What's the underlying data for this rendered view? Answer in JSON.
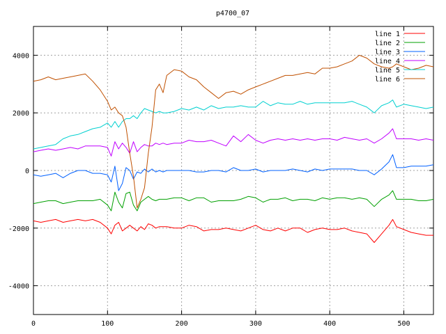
{
  "chart_data": {
    "type": "line",
    "title": "p4700_07",
    "xlabel": "",
    "ylabel": "",
    "xlim": [
      0,
      540
    ],
    "ylim": [
      -5000,
      5000
    ],
    "x_ticks": [
      0,
      100,
      200,
      300,
      400,
      500
    ],
    "y_ticks": [
      -4000,
      -2000,
      0,
      2000,
      4000
    ],
    "x_tick_labels": [
      "0",
      "100",
      "200",
      "300",
      "400",
      "500"
    ],
    "y_tick_labels": [
      "-4000",
      "-2000",
      "0",
      "2000",
      "4000"
    ],
    "grid": true,
    "legend_position": "top-right",
    "x": [
      0,
      10,
      20,
      30,
      40,
      50,
      60,
      70,
      80,
      90,
      100,
      105,
      110,
      115,
      120,
      125,
      130,
      135,
      140,
      145,
      150,
      155,
      160,
      165,
      170,
      175,
      180,
      190,
      200,
      210,
      220,
      230,
      240,
      250,
      260,
      270,
      280,
      290,
      300,
      310,
      320,
      330,
      340,
      350,
      360,
      370,
      380,
      390,
      400,
      410,
      420,
      430,
      440,
      450,
      460,
      470,
      480,
      485,
      490,
      500,
      510,
      520,
      530,
      540
    ],
    "series": [
      {
        "name": "line 1",
        "color": "#ff0000",
        "values": [
          -1750,
          -1800,
          -1750,
          -1700,
          -1800,
          -1750,
          -1700,
          -1750,
          -1700,
          -1800,
          -2000,
          -2200,
          -1900,
          -1800,
          -2100,
          -2000,
          -1900,
          -2000,
          -2100,
          -1950,
          -2050,
          -1850,
          -1900,
          -2000,
          -1950,
          -1950,
          -1950,
          -2000,
          -2000,
          -1900,
          -1950,
          -2100,
          -2050,
          -2050,
          -2000,
          -2050,
          -2100,
          -2000,
          -1900,
          -2050,
          -2100,
          -2000,
          -2100,
          -2000,
          -2000,
          -2150,
          -2050,
          -2000,
          -2050,
          -2050,
          -2000,
          -2100,
          -2150,
          -2200,
          -2500,
          -2200,
          -1900,
          -1700,
          -1950,
          -2050,
          -2150,
          -2200,
          -2250,
          -2250
        ]
      },
      {
        "name": "line 2",
        "color": "#00a000",
        "values": [
          -1150,
          -1100,
          -1050,
          -1050,
          -1150,
          -1100,
          -1050,
          -1050,
          -1050,
          -1000,
          -1200,
          -1400,
          -750,
          -1100,
          -1300,
          -800,
          -750,
          -1200,
          -1400,
          -1100,
          -1000,
          -900,
          -1000,
          -1050,
          -1000,
          -1000,
          -1000,
          -950,
          -950,
          -1050,
          -950,
          -950,
          -1100,
          -1050,
          -1050,
          -1050,
          -1000,
          -900,
          -950,
          -1100,
          -1000,
          -1000,
          -950,
          -1050,
          -1000,
          -1000,
          -1050,
          -950,
          -1000,
          -950,
          -950,
          -1000,
          -950,
          -1000,
          -1250,
          -1000,
          -850,
          -700,
          -1000,
          -1000,
          -1000,
          -1050,
          -1050,
          -1000
        ]
      },
      {
        "name": "line 3",
        "color": "#0060ff",
        "values": [
          -150,
          -200,
          -150,
          -100,
          -250,
          -100,
          0,
          0,
          -100,
          -100,
          -150,
          -400,
          150,
          -700,
          -450,
          100,
          0,
          -300,
          -50,
          -100,
          50,
          -50,
          50,
          -50,
          0,
          -50,
          0,
          0,
          0,
          0,
          -50,
          -50,
          0,
          0,
          -50,
          100,
          0,
          0,
          50,
          -50,
          0,
          0,
          0,
          50,
          0,
          -50,
          50,
          0,
          50,
          50,
          50,
          50,
          0,
          0,
          -150,
          50,
          300,
          550,
          100,
          100,
          150,
          150,
          150,
          200
        ]
      },
      {
        "name": "line 4",
        "color": "#c000ff",
        "values": [
          650,
          700,
          750,
          700,
          750,
          800,
          750,
          850,
          850,
          850,
          800,
          500,
          1000,
          750,
          950,
          800,
          600,
          1000,
          650,
          800,
          900,
          850,
          850,
          950,
          900,
          950,
          900,
          950,
          950,
          1050,
          1000,
          1000,
          1050,
          950,
          850,
          1200,
          1000,
          1250,
          1050,
          950,
          1050,
          1100,
          1050,
          1100,
          1050,
          1100,
          1050,
          1100,
          1100,
          1050,
          1150,
          1100,
          1050,
          1100,
          950,
          1100,
          1300,
          1450,
          1100,
          1100,
          1100,
          1050,
          1100,
          1050
        ]
      },
      {
        "name": "line 5",
        "color": "#00d0d0",
        "values": [
          750,
          800,
          850,
          900,
          1100,
          1200,
          1250,
          1350,
          1450,
          1500,
          1650,
          1500,
          1700,
          1500,
          1700,
          1800,
          1800,
          1900,
          1800,
          2000,
          2150,
          2100,
          2050,
          2000,
          2050,
          2000,
          2000,
          2050,
          2150,
          2100,
          2200,
          2100,
          2250,
          2150,
          2200,
          2200,
          2250,
          2200,
          2200,
          2400,
          2250,
          2350,
          2300,
          2300,
          2400,
          2300,
          2350,
          2350,
          2350,
          2350,
          2350,
          2400,
          2300,
          2200,
          2000,
          2250,
          2350,
          2450,
          2200,
          2300,
          2250,
          2200,
          2150,
          2200
        ]
      },
      {
        "name": "line 6",
        "color": "#c05000",
        "values": [
          3100,
          3150,
          3250,
          3150,
          3200,
          3250,
          3300,
          3350,
          3100,
          2800,
          2400,
          2100,
          2200,
          2000,
          1900,
          1500,
          600,
          -200,
          -1300,
          -1000,
          -600,
          600,
          1500,
          2800,
          3000,
          2700,
          3300,
          3500,
          3450,
          3250,
          3150,
          2900,
          2700,
          2500,
          2700,
          2750,
          2650,
          2800,
          2900,
          3000,
          3100,
          3200,
          3300,
          3300,
          3350,
          3400,
          3350,
          3550,
          3550,
          3600,
          3700,
          3800,
          4000,
          3900,
          3700,
          3600,
          3550,
          3600,
          3700,
          3600,
          3500,
          3550,
          3650,
          3600
        ]
      }
    ]
  }
}
